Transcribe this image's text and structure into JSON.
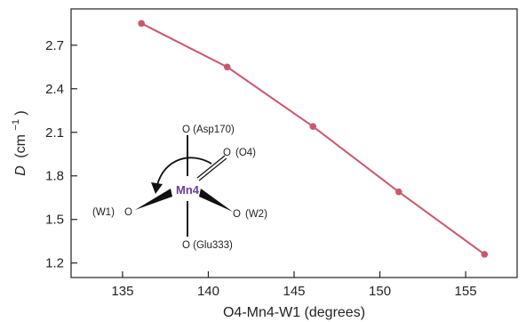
{
  "chart_data": {
    "type": "line",
    "xlabel": "O4-Mn4-W1 (degrees)",
    "ylabel_symbol": "D",
    "ylabel_unit_base": "(cm",
    "ylabel_unit_exp": "−1",
    "ylabel_unit_close": ")",
    "xlim": [
      132,
      158
    ],
    "ylim": [
      1.1,
      2.95
    ],
    "xticks": [
      135,
      140,
      145,
      150,
      155
    ],
    "yticks": [
      1.2,
      1.5,
      1.8,
      2.1,
      2.4,
      2.7
    ],
    "ytick_labels": [
      "1.2",
      "1.5",
      "1.8",
      "2.1",
      "2.4",
      "2.7"
    ],
    "grid": false,
    "series": [
      {
        "color": "#c9576e",
        "x": [
          136.1,
          141.1,
          146.1,
          151.1,
          156.1
        ],
        "y": [
          2.85,
          2.55,
          2.14,
          1.69,
          1.26
        ]
      }
    ]
  },
  "inset": {
    "metal": "Mn4",
    "ligands": {
      "top": "O (Asp170)",
      "upper_right_atom": "O",
      "upper_right_tag": "(O4)",
      "left_tag": "(W1)",
      "left_atom": "O",
      "right_atom": "O",
      "right_tag": "(W2)",
      "bottom": "O (Glu333)"
    }
  }
}
